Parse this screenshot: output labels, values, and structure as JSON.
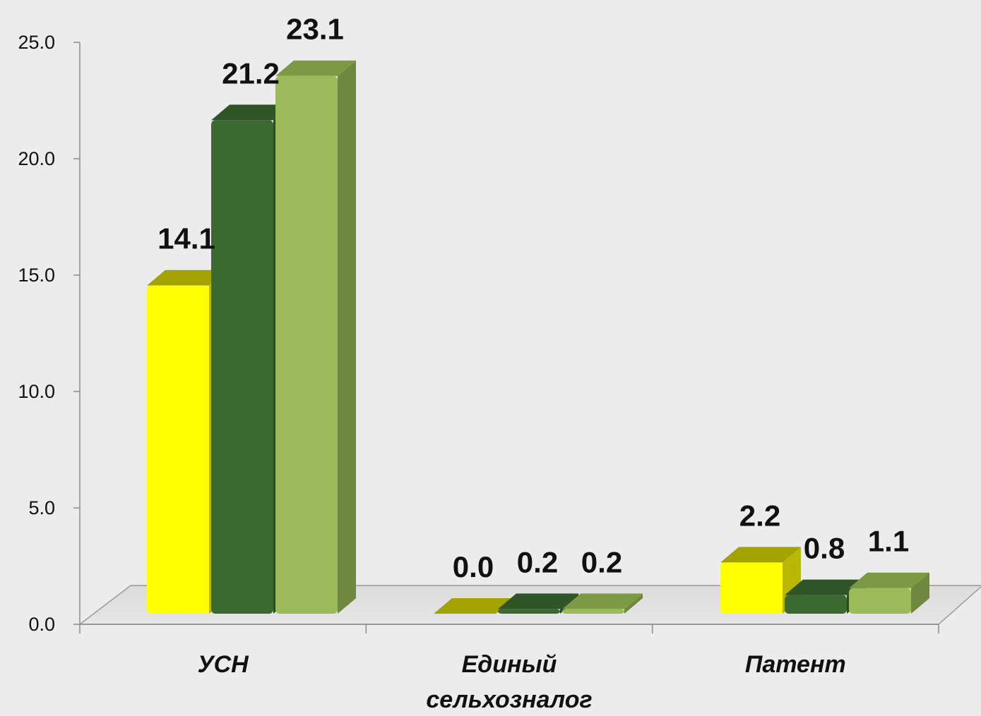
{
  "chart_data": {
    "type": "bar",
    "categories": [
      "УСН",
      "Единый сельхозналог",
      "Патент"
    ],
    "category_lines": [
      [
        "УСН"
      ],
      [
        "Единый",
        "сельхозналог"
      ],
      [
        "Патент"
      ]
    ],
    "series": [
      {
        "values": [
          14.1,
          0.0,
          2.2
        ],
        "color": "#ffff00",
        "top_color": "#a3a300"
      },
      {
        "values": [
          21.2,
          0.2,
          0.8
        ],
        "color": "#3b6a30",
        "top_color": "#2f5526"
      },
      {
        "values": [
          23.1,
          0.2,
          1.1
        ],
        "color": "#9bbb59",
        "top_color": "#7c9a43"
      }
    ],
    "value_labels": [
      [
        "14.1",
        "0.0",
        "2.2"
      ],
      [
        "21.2",
        "0.2",
        "0.8"
      ],
      [
        "23.1",
        "0.2",
        "1.1"
      ]
    ],
    "yticks": [
      "0.0",
      "5.0",
      "10.0",
      "15.0",
      "20.0",
      "25.0"
    ],
    "ylim": [
      0,
      25
    ],
    "title": "",
    "xlabel": "",
    "ylabel": "",
    "grid": false,
    "legend": false,
    "style": "3d-bar"
  }
}
